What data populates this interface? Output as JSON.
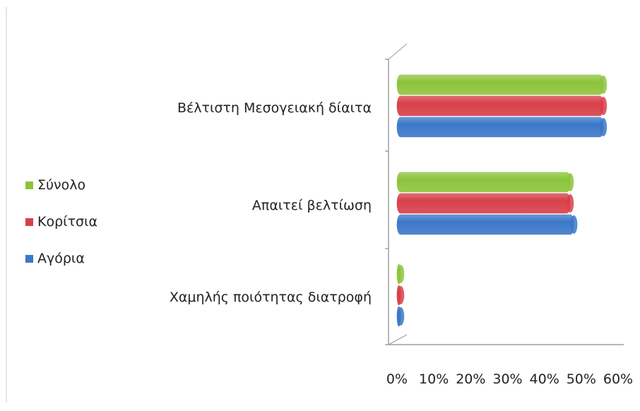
{
  "chart_data": {
    "type": "bar",
    "orientation": "horizontal",
    "style": "3d-cylinder",
    "categories": [
      "Βέλτιστη Μεσογειακή δίαιτα",
      "Απαιτεί βελτίωση",
      "Χαμηλής ποιότητας διατροφή"
    ],
    "series": [
      {
        "name": "Σύνολο",
        "color": "#8cc43c",
        "values": [
          0.56,
          0.47,
          0.01
        ]
      },
      {
        "name": "Κορίτσια",
        "color": "#d8404a",
        "values": [
          0.56,
          0.47,
          0.01
        ]
      },
      {
        "name": "Αγόρια",
        "color": "#3c78c8",
        "values": [
          0.56,
          0.48,
          0.01
        ]
      }
    ],
    "xlim": [
      0,
      0.6
    ],
    "xticks": [
      "0%",
      "10%",
      "20%",
      "30%",
      "40%",
      "50%",
      "60%"
    ],
    "legend_position": "left",
    "grid": false
  }
}
